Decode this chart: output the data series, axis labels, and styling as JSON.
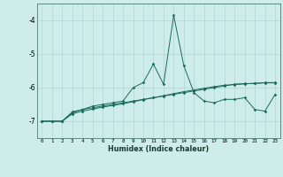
{
  "title": "",
  "xlabel": "Humidex (Indice chaleur)",
  "bg_color": "#cdecea",
  "line_color": "#1a6b5a",
  "grid_color": "#aed8d4",
  "xlim": [
    -0.5,
    23.5
  ],
  "ylim": [
    -7.5,
    -3.5
  ],
  "yticks": [
    -7,
    -6,
    -5,
    -4
  ],
  "xticks": [
    0,
    1,
    2,
    3,
    4,
    5,
    6,
    7,
    8,
    9,
    10,
    11,
    12,
    13,
    14,
    15,
    16,
    17,
    18,
    19,
    20,
    21,
    22,
    23
  ],
  "series1": {
    "x": [
      0,
      1,
      2,
      3,
      4,
      5,
      6,
      7,
      8,
      9,
      10,
      11,
      12,
      13,
      14,
      15,
      16,
      17,
      18,
      19,
      20,
      21,
      22,
      23
    ],
    "y": [
      -7.0,
      -7.0,
      -7.0,
      -6.75,
      -6.65,
      -6.55,
      -6.5,
      -6.45,
      -6.4,
      -6.0,
      -5.85,
      -5.3,
      -5.9,
      -3.85,
      -5.35,
      -6.15,
      -6.4,
      -6.45,
      -6.35,
      -6.35,
      -6.3,
      -6.65,
      -6.7,
      -6.2
    ]
  },
  "series2": {
    "x": [
      0,
      1,
      2,
      3,
      4,
      5,
      6,
      7,
      8,
      9,
      10,
      11,
      12,
      13,
      14,
      15,
      16,
      17,
      18,
      19,
      20,
      21,
      22,
      23
    ],
    "y": [
      -7.0,
      -7.0,
      -7.0,
      -6.72,
      -6.65,
      -6.6,
      -6.55,
      -6.5,
      -6.45,
      -6.4,
      -6.35,
      -6.3,
      -6.25,
      -6.2,
      -6.15,
      -6.1,
      -6.05,
      -6.0,
      -5.95,
      -5.9,
      -5.88,
      -5.88,
      -5.85,
      -5.85
    ]
  },
  "series3": {
    "x": [
      0,
      1,
      2,
      3,
      4,
      5,
      6,
      7,
      8,
      9,
      10,
      11,
      12,
      13,
      14,
      15,
      16,
      17,
      18,
      19,
      20,
      21,
      22,
      23
    ],
    "y": [
      -7.0,
      -7.0,
      -7.0,
      -6.78,
      -6.7,
      -6.64,
      -6.58,
      -6.53,
      -6.48,
      -6.42,
      -6.36,
      -6.3,
      -6.24,
      -6.18,
      -6.12,
      -6.07,
      -6.02,
      -5.97,
      -5.93,
      -5.91,
      -5.89,
      -5.87,
      -5.86,
      -5.86
    ]
  }
}
